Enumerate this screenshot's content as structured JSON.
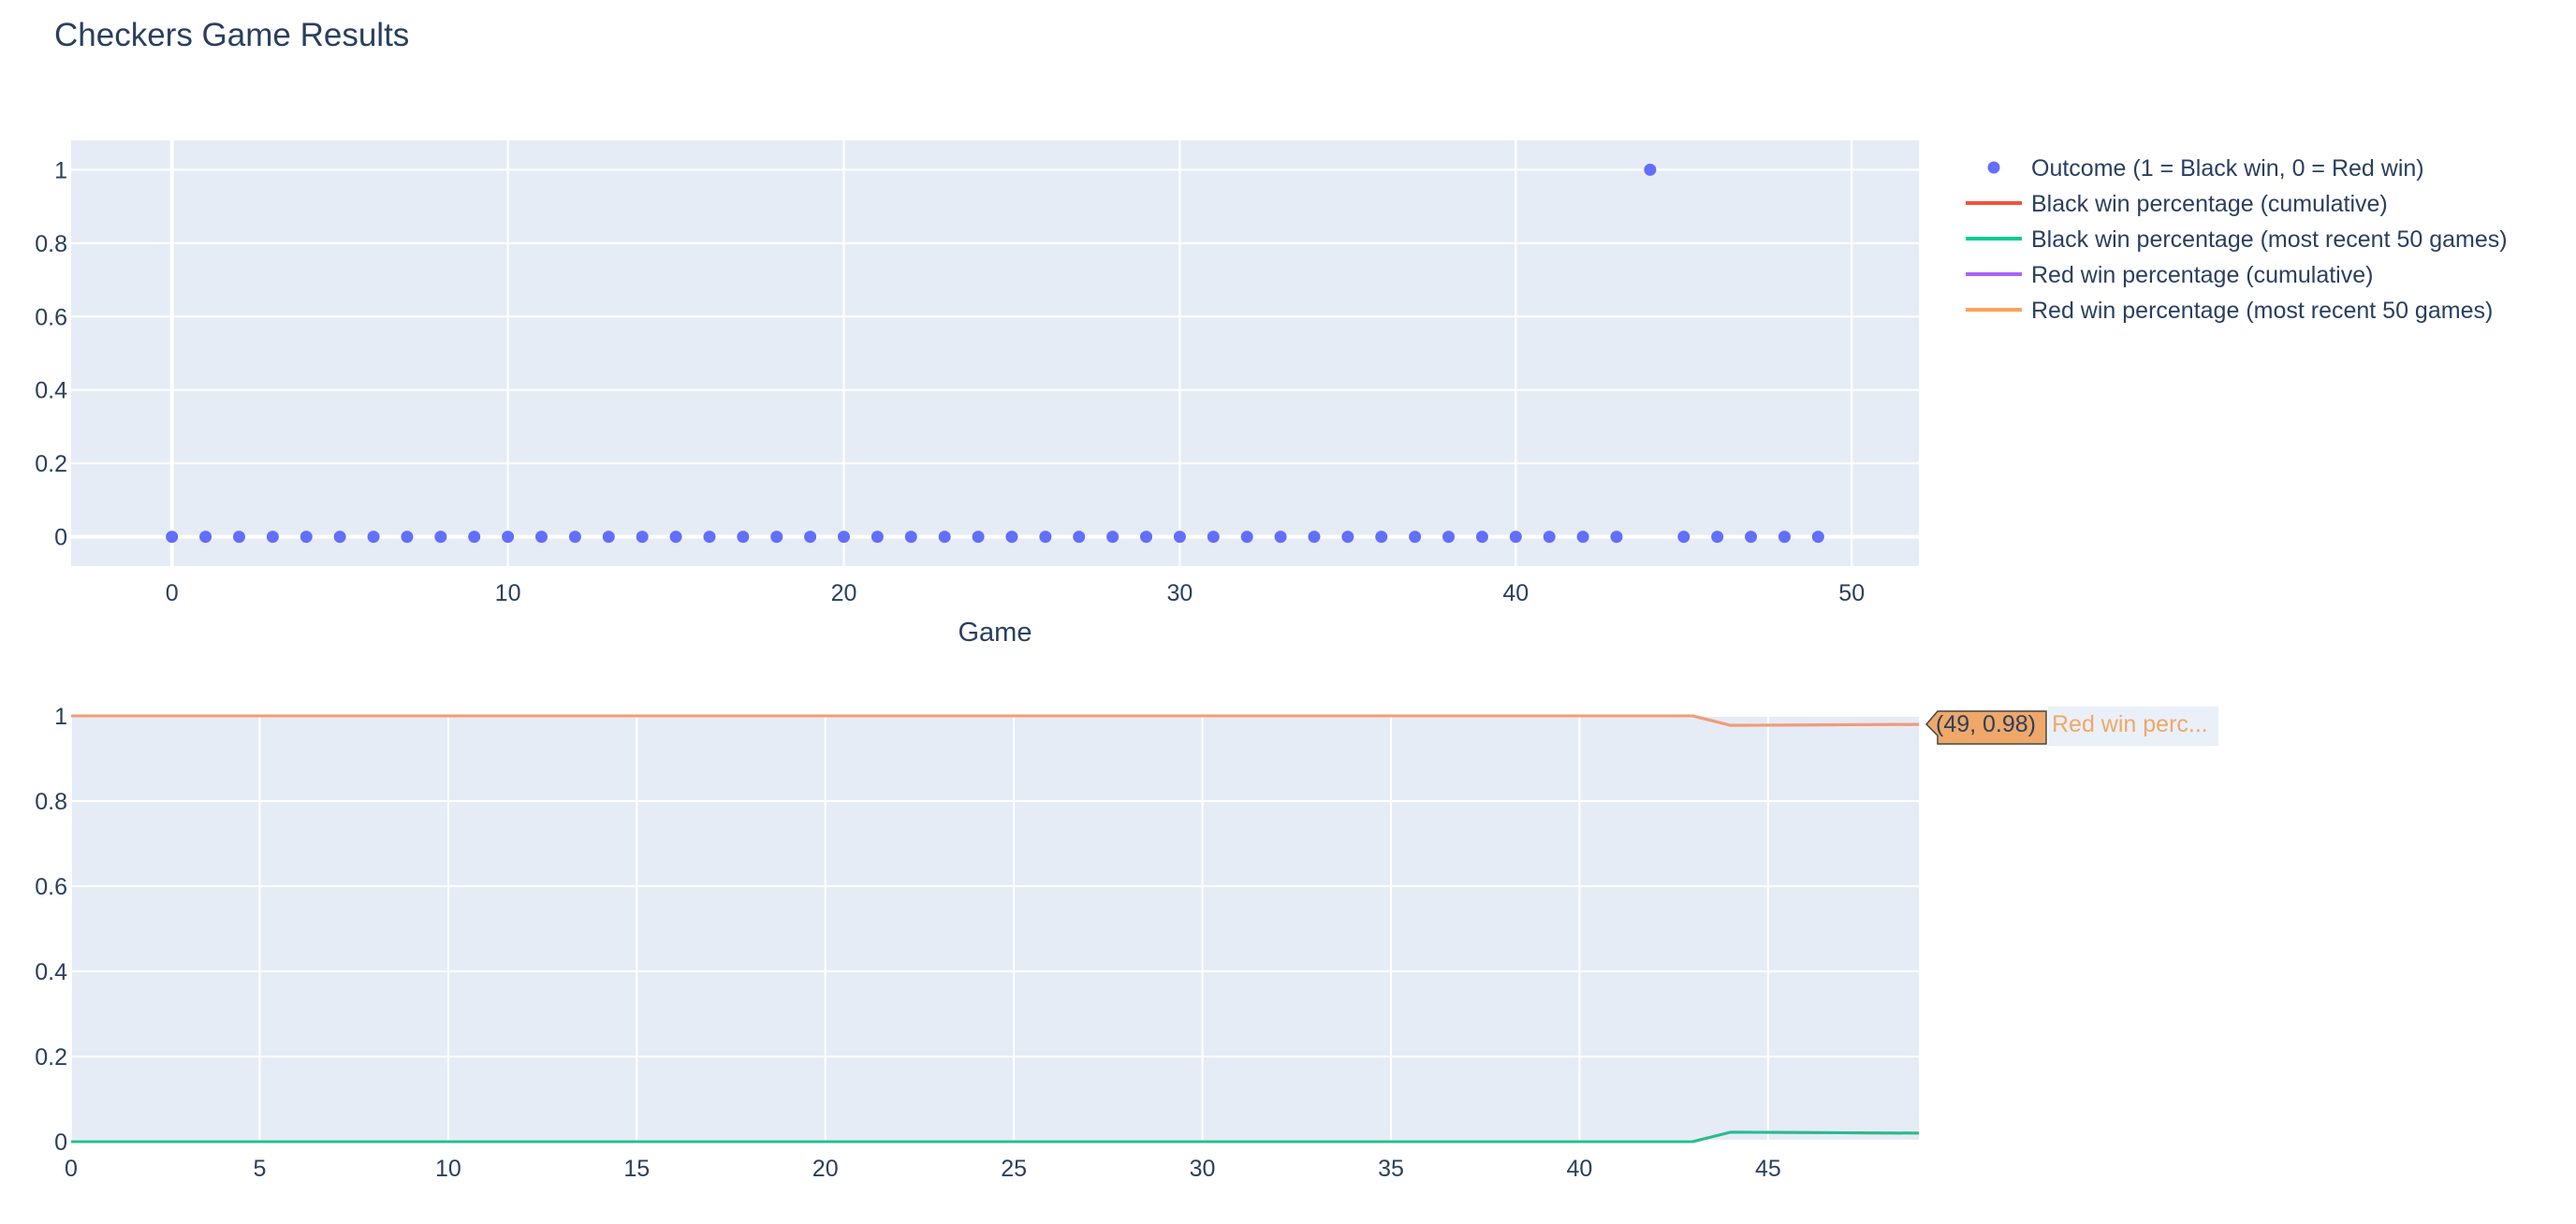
{
  "title": "Checkers Game Results",
  "legend": [
    {
      "label": "Outcome (1 = Black win, 0 = Red win)",
      "color": "#636efa",
      "marker": "dot"
    },
    {
      "label": "Black win percentage (cumulative)",
      "color": "#ef553b",
      "marker": "line"
    },
    {
      "label": "Black win percentage (most recent 50 games)",
      "color": "#00cc96",
      "marker": "line"
    },
    {
      "label": "Red win percentage (cumulative)",
      "color": "#ab63fa",
      "marker": "line"
    },
    {
      "label": "Red win percentage (most recent 50 games)",
      "color": "#ffa15a",
      "marker": "line"
    }
  ],
  "hover": {
    "value_label": "(49, 0.98)",
    "series_label": "Red win perc...",
    "color": "#f0a868"
  },
  "chart_data": [
    {
      "type": "scatter",
      "xlabel": "Game",
      "ylabel": "",
      "xlim": [
        -3,
        52
      ],
      "ylim": [
        -0.08,
        1.08
      ],
      "xticks": [
        0,
        10,
        20,
        30,
        40,
        50
      ],
      "yticks": [
        0,
        0.2,
        0.4,
        0.6,
        0.8,
        1
      ],
      "ytick_labels": [
        "0",
        "0.2",
        "0.4",
        "0.6",
        "0.8",
        "1"
      ],
      "grid": true,
      "series": [
        {
          "name": "Outcome (1 = Black win, 0 = Red win)",
          "color": "#636efa",
          "x": [
            0,
            1,
            2,
            3,
            4,
            5,
            6,
            7,
            8,
            9,
            10,
            11,
            12,
            13,
            14,
            15,
            16,
            17,
            18,
            19,
            20,
            21,
            22,
            23,
            24,
            25,
            26,
            27,
            28,
            29,
            30,
            31,
            32,
            33,
            34,
            35,
            36,
            37,
            38,
            39,
            40,
            41,
            42,
            43,
            44,
            45,
            46,
            47,
            48,
            49
          ],
          "y": [
            0,
            0,
            0,
            0,
            0,
            0,
            0,
            0,
            0,
            0,
            0,
            0,
            0,
            0,
            0,
            0,
            0,
            0,
            0,
            0,
            0,
            0,
            0,
            0,
            0,
            0,
            0,
            0,
            0,
            0,
            0,
            0,
            0,
            0,
            0,
            0,
            0,
            0,
            0,
            0,
            0,
            0,
            0,
            0,
            1,
            0,
            0,
            0,
            0,
            0
          ]
        }
      ]
    },
    {
      "type": "line",
      "xlabel": "",
      "ylabel": "",
      "xlim": [
        0,
        49
      ],
      "ylim": [
        0,
        1
      ],
      "xticks": [
        0,
        5,
        10,
        15,
        20,
        25,
        30,
        35,
        40,
        45
      ],
      "yticks": [
        0,
        0.2,
        0.4,
        0.6,
        0.8,
        1
      ],
      "ytick_labels": [
        "0",
        "0.2",
        "0.4",
        "0.6",
        "0.8",
        "1"
      ],
      "grid": true,
      "series": [
        {
          "name": "Black win percentage (cumulative)",
          "color": "#ef553b",
          "x": [
            0,
            43,
            44,
            49
          ],
          "y": [
            0,
            0,
            0.0222,
            0.02
          ]
        },
        {
          "name": "Black win percentage (most recent 50 games)",
          "color": "#00cc96",
          "x": [
            0,
            43,
            44,
            49
          ],
          "y": [
            0,
            0,
            0.0222,
            0.02
          ]
        },
        {
          "name": "Red win percentage (cumulative)",
          "color": "#ab63fa",
          "x": [
            0,
            43,
            44,
            49
          ],
          "y": [
            1,
            1,
            0.9778,
            0.98
          ]
        },
        {
          "name": "Red win percentage (most recent 50 games)",
          "color": "#ffa15a",
          "x": [
            0,
            43,
            44,
            49
          ],
          "y": [
            1,
            1,
            0.9778,
            0.98
          ]
        }
      ]
    }
  ]
}
